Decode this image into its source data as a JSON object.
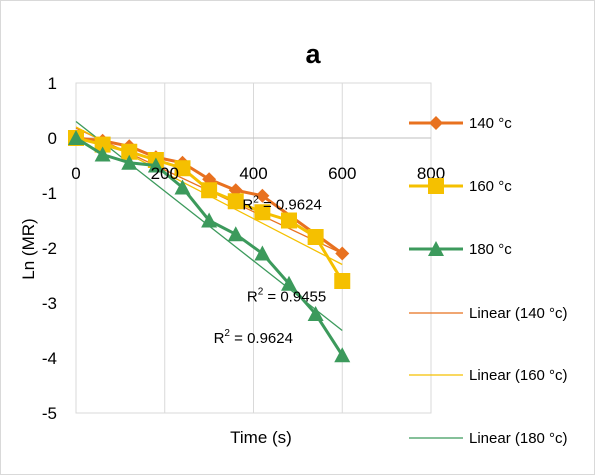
{
  "chart_data": {
    "type": "scatter",
    "title": "a",
    "xlabel": "Time (s)",
    "ylabel": "Ln (MR)",
    "xlim": [
      0,
      800
    ],
    "ylim": [
      -5,
      1
    ],
    "x_ticks": [
      "0",
      "200",
      "400",
      "600",
      "800"
    ],
    "y_ticks": [
      "1",
      "0",
      "-1",
      "-2",
      "-3",
      "-4",
      "-5"
    ],
    "grid": "vertical",
    "legend_position": "right",
    "series": [
      {
        "name": "140 °c",
        "color": "#e8711f",
        "marker": "diamond",
        "x": [
          0,
          60,
          120,
          180,
          240,
          300,
          360,
          420,
          600
        ],
        "y": [
          0,
          -0.05,
          -0.15,
          -0.35,
          -0.45,
          -0.75,
          -0.95,
          -1.05,
          -2.1
        ]
      },
      {
        "name": "160 °c",
        "color": "#f5c000",
        "marker": "square",
        "x": [
          0,
          60,
          120,
          180,
          240,
          300,
          360,
          420,
          480,
          540,
          600
        ],
        "y": [
          0,
          -0.12,
          -0.25,
          -0.4,
          -0.55,
          -0.95,
          -1.15,
          -1.35,
          -1.5,
          -1.8,
          -2.6
        ]
      },
      {
        "name": "180 °c",
        "color": "#3c9a5c",
        "marker": "triangle",
        "x": [
          0,
          60,
          120,
          180,
          240,
          300,
          360,
          420,
          480,
          540,
          600
        ],
        "y": [
          0,
          -0.3,
          -0.45,
          -0.5,
          -0.9,
          -1.5,
          -1.75,
          -2.1,
          -2.65,
          -3.2,
          -3.95
        ]
      }
    ],
    "trendlines": [
      {
        "name": "Linear (140 °c)",
        "color": "#e8711f",
        "x": [
          0,
          600
        ],
        "y": [
          0.18,
          -2.1
        ]
      },
      {
        "name": "Linear (160 °c)",
        "color": "#f5c000",
        "x": [
          0,
          600
        ],
        "y": [
          0.2,
          -2.3
        ]
      },
      {
        "name": "Linear (180 °c)",
        "color": "#3c9a5c",
        "x": [
          0,
          600
        ],
        "y": [
          0.3,
          -3.5
        ]
      }
    ],
    "annotations": [
      {
        "base": "R",
        "sup": "2",
        "text": " = 0.9624",
        "x": 375,
        "y": -1.3
      },
      {
        "base": "R",
        "sup": "2",
        "text": " = 0.9455",
        "x": 385,
        "y": -2.97
      },
      {
        "base": "R",
        "sup": "2",
        "text": " = 0.9624",
        "x": 310,
        "y": -3.73
      }
    ]
  }
}
